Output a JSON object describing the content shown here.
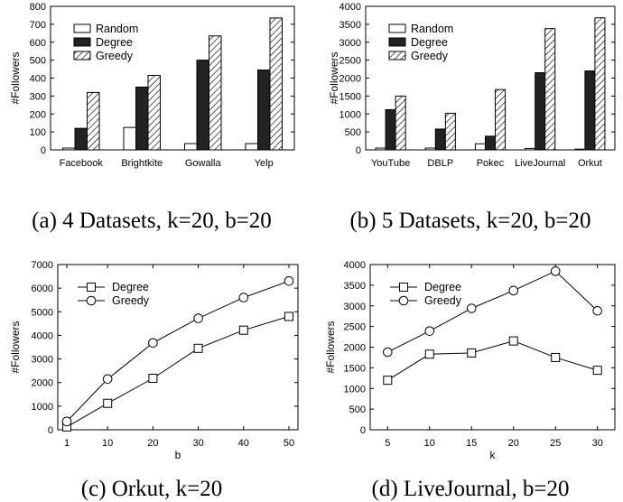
{
  "chart_data": [
    {
      "type": "bar",
      "caption": "(a) 4 Datasets, k=20, b=20",
      "ylabel": "#Followers",
      "ylim": [
        0,
        800
      ],
      "yticks": [
        0,
        100,
        200,
        300,
        400,
        500,
        600,
        700,
        800
      ],
      "categories": [
        "Facebook",
        "Brightkite",
        "Gowalla",
        "Yelp"
      ],
      "legend_position": "top-left",
      "series": [
        {
          "name": "Random",
          "pattern": "white",
          "values": [
            10,
            125,
            35,
            35
          ]
        },
        {
          "name": "Degree",
          "pattern": "black",
          "values": [
            120,
            350,
            500,
            445
          ]
        },
        {
          "name": "Greedy",
          "pattern": "hatched",
          "values": [
            320,
            415,
            635,
            735
          ]
        }
      ]
    },
    {
      "type": "bar",
      "caption": "(b) 5 Datasets, k=20, b=20",
      "ylabel": "#Followers",
      "ylim": [
        0,
        4000
      ],
      "yticks": [
        0,
        500,
        1000,
        1500,
        2000,
        2500,
        3000,
        3500,
        4000
      ],
      "categories": [
        "YouTube",
        "DBLP",
        "Pokec",
        "LiveJournal",
        "Orkut"
      ],
      "legend_position": "top-left",
      "series": [
        {
          "name": "Random",
          "pattern": "white",
          "values": [
            50,
            50,
            170,
            40,
            20
          ]
        },
        {
          "name": "Degree",
          "pattern": "black",
          "values": [
            1120,
            580,
            380,
            2150,
            2200
          ]
        },
        {
          "name": "Greedy",
          "pattern": "hatched",
          "values": [
            1500,
            1020,
            1680,
            3380,
            3680
          ]
        }
      ]
    },
    {
      "type": "line",
      "caption": "(c) Orkut, k=20",
      "xlabel": "b",
      "ylabel": "#Followers",
      "ylim": [
        0,
        7000
      ],
      "yticks": [
        0,
        1000,
        2000,
        3000,
        4000,
        5000,
        6000,
        7000
      ],
      "xticks": [
        1,
        10,
        20,
        30,
        40,
        50
      ],
      "xlim": [
        1,
        50
      ],
      "x": [
        1,
        10,
        20,
        30,
        40,
        50
      ],
      "legend_position": "top-left",
      "series": [
        {
          "name": "Degree",
          "marker": "square",
          "values": [
            120,
            1120,
            2180,
            3450,
            4220,
            4800
          ]
        },
        {
          "name": "Greedy",
          "marker": "circle",
          "values": [
            350,
            2150,
            3680,
            4720,
            5600,
            6300
          ]
        }
      ]
    },
    {
      "type": "line",
      "caption": "(d) LiveJournal, b=20",
      "xlabel": "k",
      "ylabel": "#Followers",
      "ylim": [
        0,
        4000
      ],
      "yticks": [
        0,
        500,
        1000,
        1500,
        2000,
        2500,
        3000,
        3500,
        4000
      ],
      "xticks": [
        5,
        10,
        15,
        20,
        25,
        30
      ],
      "xlim": [
        4,
        31
      ],
      "x": [
        5,
        10,
        15,
        20,
        25,
        30
      ],
      "legend_position": "top-left",
      "series": [
        {
          "name": "Degree",
          "marker": "square",
          "values": [
            1200,
            1830,
            1860,
            2150,
            1750,
            1440
          ]
        },
        {
          "name": "Greedy",
          "marker": "circle",
          "values": [
            1880,
            2390,
            2940,
            3370,
            3840,
            2880
          ]
        }
      ]
    }
  ]
}
